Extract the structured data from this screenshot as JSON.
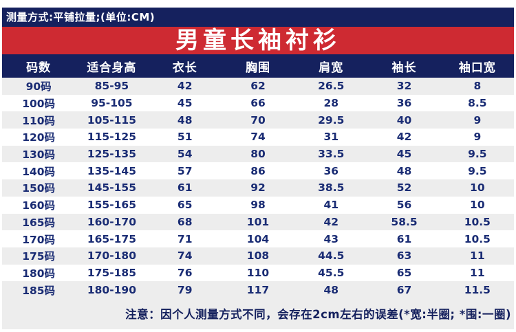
{
  "meta_bar": {
    "text": "测量方式:平铺拉量;(单位:CM)"
  },
  "title": "男童长袖衬衫",
  "table": {
    "headers": [
      "码数",
      "适合身高",
      "衣长",
      "胸围",
      "肩宽",
      "袖长",
      "袖口宽"
    ],
    "rows": [
      [
        "90码",
        "85-95",
        "42",
        "62",
        "26.5",
        "32",
        "8"
      ],
      [
        "100码",
        "95-105",
        "45",
        "66",
        "28",
        "36",
        "8.5"
      ],
      [
        "110码",
        "105-115",
        "48",
        "70",
        "29.5",
        "40",
        "9"
      ],
      [
        "120码",
        "115-125",
        "51",
        "74",
        "31",
        "42",
        "9"
      ],
      [
        "130码",
        "125-135",
        "54",
        "80",
        "33.5",
        "45",
        "9.5"
      ],
      [
        "140码",
        "135-145",
        "57",
        "86",
        "36",
        "48",
        "9.5"
      ],
      [
        "150码",
        "145-155",
        "61",
        "92",
        "38.5",
        "52",
        "10"
      ],
      [
        "160码",
        "155-165",
        "65",
        "98",
        "41",
        "56",
        "10"
      ],
      [
        "165码",
        "160-170",
        "68",
        "101",
        "42",
        "58.5",
        "10.5"
      ],
      [
        "170码",
        "165-175",
        "71",
        "104",
        "43",
        "61",
        "10.5"
      ],
      [
        "175码",
        "170-180",
        "74",
        "108",
        "44.5",
        "63",
        "11"
      ],
      [
        "180码",
        "175-185",
        "76",
        "110",
        "45.5",
        "65",
        "11"
      ],
      [
        "185码",
        "180-190",
        "79",
        "117",
        "48",
        "67",
        "11.5"
      ]
    ]
  },
  "note": "注意：因个人测量方式不同，会存在2cm左右的误差(*宽:半圈; *围:一圈)",
  "colors": {
    "navy": "#15215E",
    "red": "#CE2A32",
    "row_alt_gray": "#EDEDED",
    "data_text": "#1A2C74"
  }
}
